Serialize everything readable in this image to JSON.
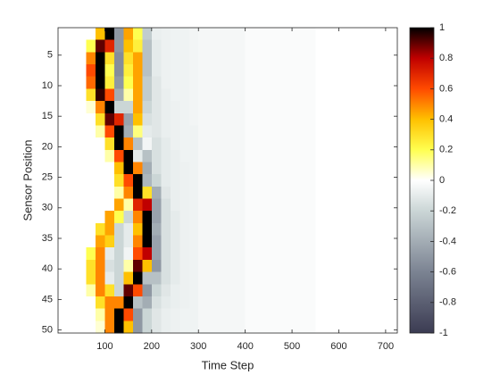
{
  "chart_data": {
    "type": "heatmap",
    "xlabel": "Time Step",
    "ylabel": "Sensor Position",
    "xbins": [
      0,
      20,
      40,
      60,
      80,
      100,
      120,
      140,
      160,
      180,
      200,
      220,
      240,
      260,
      280,
      300,
      400,
      550,
      725
    ],
    "ybins": [
      0.5,
      2.5,
      4.5,
      6.5,
      8.5,
      10.5,
      12.5,
      14.5,
      16.5,
      18.5,
      20.5,
      22.5,
      24.5,
      26.5,
      28.5,
      30.5,
      32.5,
      34.5,
      36.5,
      38.5,
      40.5,
      42.5,
      44.5,
      46.5,
      48.5,
      50.5
    ],
    "xlim": [
      0,
      725
    ],
    "ylim": [
      0.5,
      50.5
    ],
    "y_reversed": true,
    "xticks": [
      100,
      200,
      300,
      400,
      500,
      600,
      700
    ],
    "yticks": [
      5,
      10,
      15,
      20,
      25,
      30,
      35,
      40,
      45,
      50
    ],
    "values": [
      [
        0,
        0,
        0,
        0,
        0.4,
        1,
        -0.5,
        0.45,
        0.2,
        -0.25,
        -0.08,
        -0.07,
        -0.06,
        -0.06,
        -0.05,
        -0.04,
        -0.02,
        0
      ],
      [
        0,
        0,
        0,
        0.2,
        0.9,
        0.7,
        -0.5,
        0.4,
        0.25,
        -0.3,
        -0.1,
        -0.07,
        -0.06,
        -0.06,
        -0.05,
        -0.04,
        -0.02,
        0
      ],
      [
        0,
        0,
        0,
        0.5,
        1,
        0.3,
        -0.55,
        0.3,
        0.45,
        -0.3,
        -0.1,
        -0.07,
        -0.06,
        -0.06,
        -0.05,
        -0.04,
        -0.02,
        0
      ],
      [
        0,
        0,
        0,
        0.6,
        1,
        0.2,
        -0.55,
        0.25,
        0.45,
        -0.3,
        -0.1,
        -0.07,
        -0.06,
        -0.06,
        -0.05,
        -0.04,
        -0.02,
        0
      ],
      [
        0,
        0,
        0,
        0.55,
        1,
        0.25,
        -0.5,
        0.2,
        0.45,
        -0.25,
        -0.12,
        -0.07,
        -0.06,
        -0.06,
        -0.05,
        -0.04,
        -0.02,
        0
      ],
      [
        0,
        0,
        0,
        0.3,
        0.95,
        0.6,
        -0.4,
        0.1,
        0.45,
        -0.25,
        -0.12,
        -0.08,
        -0.06,
        -0.06,
        -0.05,
        -0.04,
        -0.02,
        0
      ],
      [
        0,
        0,
        0,
        0.05,
        0.5,
        1,
        -0.2,
        -0.2,
        0.45,
        -0.2,
        -0.12,
        -0.08,
        -0.07,
        -0.06,
        -0.05,
        -0.04,
        -0.02,
        0
      ],
      [
        0,
        0,
        0,
        0,
        0.3,
        0.9,
        0.7,
        -0.45,
        0.4,
        -0.15,
        -0.12,
        -0.08,
        -0.07,
        -0.06,
        -0.05,
        -0.04,
        -0.02,
        0
      ],
      [
        0,
        0,
        0,
        0,
        0.1,
        0.6,
        1,
        -0.4,
        0.15,
        -0.1,
        -0.12,
        -0.08,
        -0.07,
        -0.06,
        -0.06,
        -0.04,
        -0.02,
        0
      ],
      [
        0,
        0,
        0,
        0,
        0,
        0.3,
        1,
        0.5,
        -0.3,
        -0.05,
        -0.15,
        -0.1,
        -0.07,
        -0.06,
        -0.06,
        -0.04,
        -0.02,
        0
      ],
      [
        0,
        0,
        0,
        0,
        0,
        0.1,
        0.6,
        1,
        -0.1,
        -0.3,
        -0.15,
        -0.1,
        -0.08,
        -0.06,
        -0.06,
        -0.04,
        -0.02,
        0
      ],
      [
        0,
        0,
        0,
        0,
        0,
        0,
        0.4,
        1,
        0.5,
        -0.4,
        -0.15,
        -0.1,
        -0.08,
        -0.07,
        -0.06,
        -0.04,
        -0.02,
        0
      ],
      [
        0,
        0,
        0,
        0,
        0,
        0,
        0.3,
        0.6,
        1,
        -0.35,
        -0.2,
        -0.1,
        -0.08,
        -0.07,
        -0.06,
        -0.04,
        -0.02,
        0
      ],
      [
        0,
        0,
        0,
        0,
        0,
        0,
        0.1,
        0.5,
        1,
        0.3,
        -0.4,
        -0.12,
        -0.08,
        -0.07,
        -0.06,
        -0.04,
        -0.02,
        0
      ],
      [
        0,
        0,
        0,
        0,
        0,
        0,
        0.45,
        0.1,
        0.7,
        0.8,
        -0.45,
        -0.15,
        -0.08,
        -0.07,
        -0.06,
        -0.04,
        -0.02,
        0
      ],
      [
        0,
        0,
        0,
        0,
        0,
        0.45,
        0.2,
        -0.2,
        0.5,
        1,
        -0.45,
        -0.15,
        -0.1,
        -0.07,
        -0.06,
        -0.04,
        -0.02,
        0
      ],
      [
        0,
        0,
        0,
        0,
        0.3,
        0.45,
        -0.2,
        -0.1,
        0.4,
        1,
        -0.4,
        -0.15,
        -0.1,
        -0.07,
        -0.06,
        -0.04,
        -0.02,
        0
      ],
      [
        0,
        0,
        0,
        0,
        0.45,
        0.35,
        -0.2,
        -0.1,
        0.5,
        1,
        -0.45,
        -0.15,
        -0.1,
        -0.07,
        -0.06,
        -0.04,
        -0.02,
        0
      ],
      [
        0,
        0,
        0,
        0.2,
        0.5,
        -0.1,
        -0.2,
        -0.05,
        0.6,
        0.8,
        -0.45,
        -0.15,
        -0.1,
        -0.07,
        -0.06,
        -0.04,
        -0.02,
        0
      ],
      [
        0,
        0,
        0,
        0.3,
        0.5,
        -0.15,
        -0.2,
        0.1,
        0.9,
        0.4,
        -0.5,
        -0.15,
        -0.1,
        -0.07,
        -0.06,
        -0.04,
        -0.02,
        0
      ],
      [
        0,
        0,
        0,
        0.3,
        0.5,
        -0.1,
        -0.2,
        0.4,
        1,
        -0.3,
        -0.3,
        -0.15,
        -0.1,
        -0.07,
        -0.06,
        -0.04,
        -0.02,
        0
      ],
      [
        0,
        0,
        0,
        0.1,
        0.5,
        0.3,
        -0.2,
        0.9,
        0.6,
        -0.5,
        -0.2,
        -0.12,
        -0.08,
        -0.07,
        -0.06,
        -0.04,
        -0.02,
        0
      ],
      [
        0,
        0,
        0,
        0,
        0.3,
        0.5,
        0.5,
        1,
        -0.3,
        -0.4,
        -0.15,
        -0.1,
        -0.08,
        -0.07,
        -0.06,
        -0.04,
        -0.02,
        0
      ],
      [
        0,
        0,
        0,
        0,
        0.1,
        0.5,
        1,
        0.6,
        -0.5,
        -0.2,
        -0.12,
        -0.08,
        -0.07,
        -0.06,
        -0.06,
        -0.04,
        -0.02,
        0
      ],
      [
        0,
        0,
        0,
        0,
        0.05,
        0.5,
        1,
        0.4,
        -0.5,
        -0.2,
        -0.12,
        -0.08,
        -0.07,
        -0.06,
        -0.06,
        -0.04,
        -0.02,
        0
      ]
    ],
    "colorscale": [
      [
        -1,
        "#3b3b52"
      ],
      [
        -0.6,
        "#7b8392"
      ],
      [
        -0.2,
        "#cbd6d6"
      ],
      [
        0,
        "#ffffff"
      ],
      [
        0.2,
        "#ffff50"
      ],
      [
        0.4,
        "#ffc000"
      ],
      [
        0.6,
        "#ff4a00"
      ],
      [
        0.8,
        "#c00000"
      ],
      [
        1,
        "#000000"
      ]
    ],
    "clim": [
      -1,
      1
    ],
    "cticks": [
      -1,
      -0.8,
      -0.6,
      -0.4,
      -0.2,
      0,
      0.2,
      0.4,
      0.6,
      0.8,
      1
    ]
  }
}
